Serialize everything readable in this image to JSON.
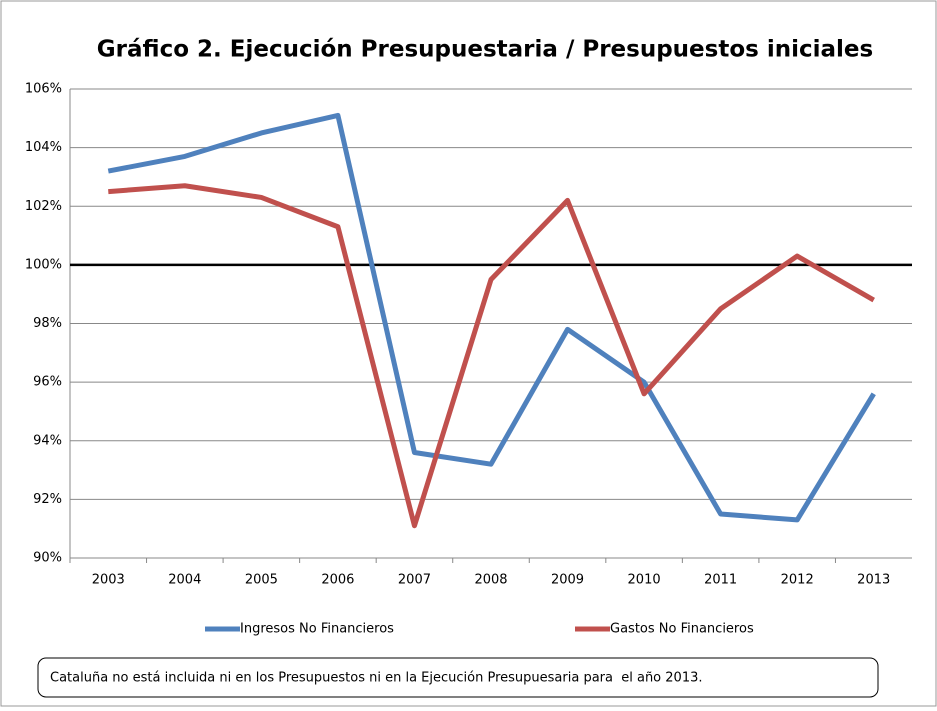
{
  "chart_data": {
    "type": "line",
    "title": "Gráfico 2. Ejecución Presupuestaria / Presupuestos iniciales",
    "categories": [
      "2003",
      "2004",
      "2005",
      "2006",
      "2007",
      "2008",
      "2009",
      "2010",
      "2011",
      "2012",
      "2013"
    ],
    "series": [
      {
        "name": "Ingresos No Financieros",
        "color": "#4f81bd",
        "values": [
          103.2,
          103.7,
          104.5,
          105.1,
          93.6,
          93.2,
          97.8,
          96.0,
          91.5,
          91.3,
          95.6
        ]
      },
      {
        "name": "Gastos No Financieros",
        "color": "#c0504d",
        "values": [
          102.5,
          102.7,
          102.3,
          101.3,
          91.1,
          99.5,
          102.2,
          95.6,
          98.5,
          100.3,
          98.8
        ]
      }
    ],
    "reference_line": 100,
    "ylim": [
      90,
      106
    ],
    "yticks": [
      {
        "value": 90,
        "label": "90%"
      },
      {
        "value": 92,
        "label": "92%"
      },
      {
        "value": 94,
        "label": "94%"
      },
      {
        "value": 96,
        "label": "96%"
      },
      {
        "value": 98,
        "label": "98%"
      },
      {
        "value": 100,
        "label": "100%"
      },
      {
        "value": 102,
        "label": "102%"
      },
      {
        "value": 104,
        "label": "104%"
      },
      {
        "value": 106,
        "label": "106%"
      }
    ],
    "grid": true,
    "legend": "bottom",
    "note": "Cataluña no está incluida ni en los Presupuestos ni en la Ejecución Presupuesaria para  el año 2013."
  }
}
